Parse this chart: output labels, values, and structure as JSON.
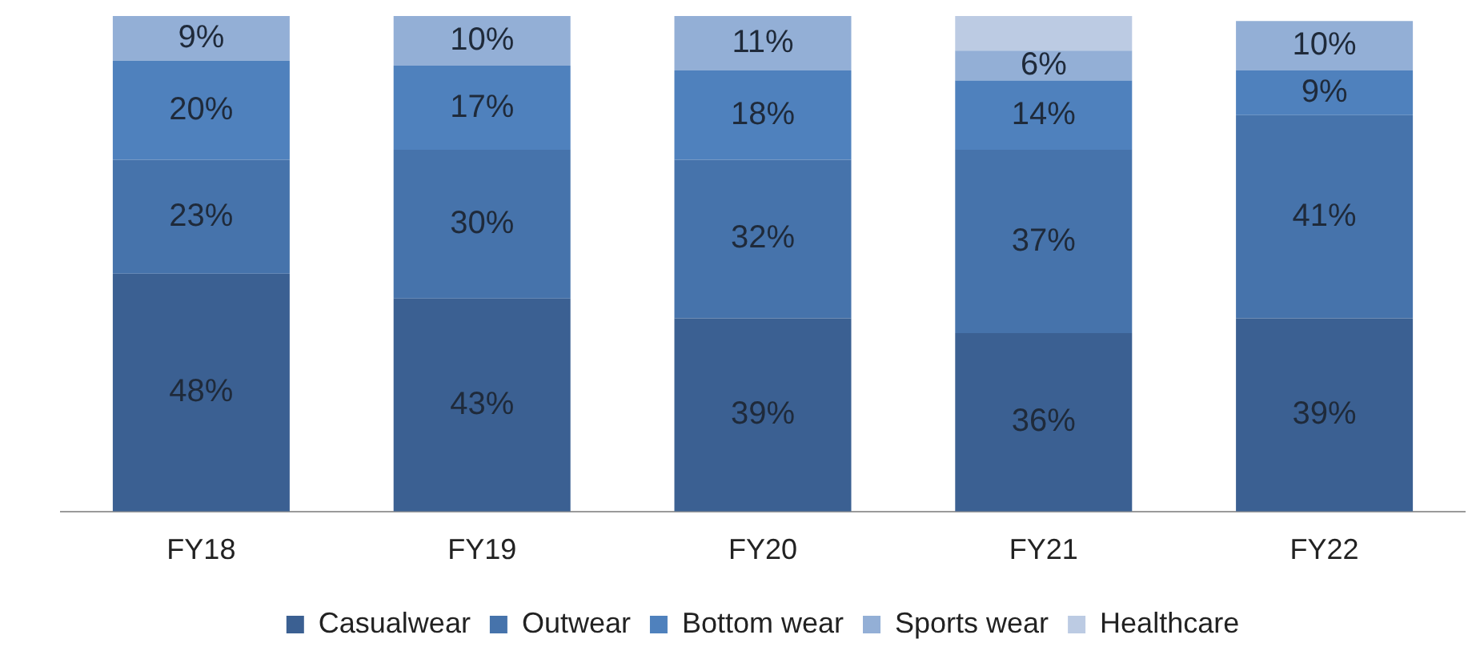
{
  "chart_data": {
    "type": "bar",
    "stacked": true,
    "categories": [
      "FY18",
      "FY19",
      "FY20",
      "FY21",
      "FY22"
    ],
    "series": [
      {
        "name": "Casualwear",
        "color": "#3b6092",
        "values": [
          48,
          43,
          39,
          36,
          39
        ],
        "value_labels": [
          "48%",
          "43%",
          "39%",
          "36%",
          "39%"
        ]
      },
      {
        "name": "Outwear",
        "color": "#4673ab",
        "values": [
          23,
          30,
          32,
          37,
          41
        ],
        "value_labels": [
          "23%",
          "30%",
          "32%",
          "37%",
          "41%"
        ]
      },
      {
        "name": "Bottom wear",
        "color": "#4f81bd",
        "values": [
          20,
          17,
          18,
          14,
          9
        ],
        "value_labels": [
          "20%",
          "17%",
          "18%",
          "14%",
          "9%"
        ]
      },
      {
        "name": "Sports wear",
        "color": "#93afd6",
        "values": [
          9,
          10,
          11,
          6,
          10
        ],
        "value_labels": [
          "9%",
          "10%",
          "11%",
          "6%",
          "10%"
        ]
      },
      {
        "name": "Healthcare",
        "color": "#bccbe3",
        "values": [
          null,
          null,
          null,
          7,
          null
        ],
        "value_labels": [
          null,
          null,
          null,
          null,
          null
        ]
      }
    ],
    "grid": false,
    "legend": "bottom"
  }
}
